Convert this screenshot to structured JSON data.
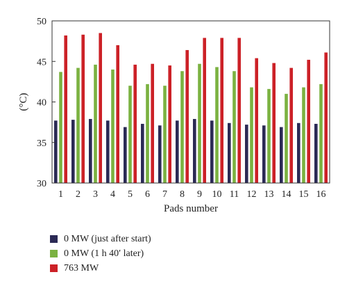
{
  "chart_data": {
    "type": "bar",
    "xlabel": "Pads number",
    "ylabel": "(°C)",
    "ylim": [
      30,
      50
    ],
    "yticks": [
      30,
      35,
      40,
      45,
      50
    ],
    "categories": [
      "1",
      "2",
      "3",
      "4",
      "5",
      "6",
      "7",
      "8",
      "9",
      "10",
      "11",
      "12",
      "13",
      "14",
      "15",
      "16"
    ],
    "grid": false,
    "legend_position": "bottom-left",
    "series": [
      {
        "name": "0 MW (just after start)",
        "color": "#2b2a55",
        "values": [
          37.7,
          37.8,
          37.9,
          37.7,
          36.9,
          37.3,
          37.1,
          37.7,
          37.9,
          37.7,
          37.4,
          37.2,
          37.1,
          36.9,
          37.4,
          37.3
        ]
      },
      {
        "name": "0 MW (1 h 40′ later)",
        "color": "#7bb241",
        "values": [
          43.7,
          44.2,
          44.6,
          44.0,
          42.0,
          42.2,
          42.0,
          43.8,
          44.7,
          44.3,
          43.8,
          41.8,
          41.6,
          41.0,
          41.8,
          42.2
        ]
      },
      {
        "name": "763 MW",
        "color": "#cc2127",
        "values": [
          48.2,
          48.3,
          48.5,
          47.0,
          44.6,
          44.7,
          44.5,
          46.4,
          47.9,
          47.9,
          47.9,
          45.4,
          44.8,
          44.2,
          45.2,
          46.1
        ]
      }
    ]
  }
}
